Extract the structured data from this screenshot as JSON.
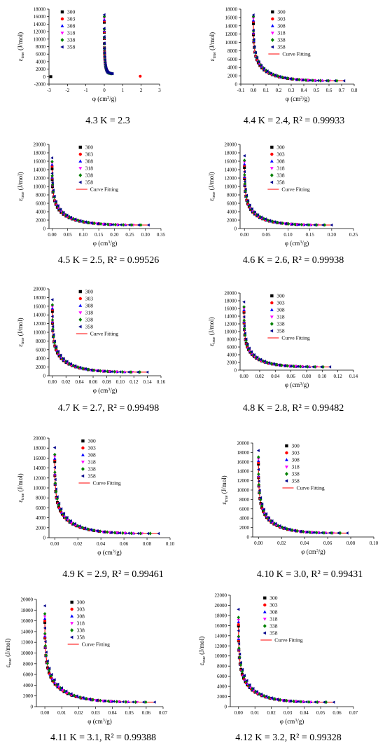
{
  "figure": {
    "legend_labels": [
      "300",
      "303",
      "308",
      "318",
      "338",
      "358"
    ],
    "fit_label": "Curve Fitting",
    "ylabel_symbol": "ε",
    "ylabel_sub": "true",
    "ylabel_unit": " (J/mol)",
    "xlabel_main": "φ (cm",
    "xlabel_sup": "3",
    "xlabel_tail": "/g)"
  },
  "series_styles": [
    {
      "name": "300",
      "color": "#000000",
      "marker": "square"
    },
    {
      "name": "303",
      "color": "#ff0000",
      "marker": "circle"
    },
    {
      "name": "308",
      "color": "#0000ff",
      "marker": "triangle-up"
    },
    {
      "name": "318",
      "color": "#ff00ff",
      "marker": "triangle-down"
    },
    {
      "name": "338",
      "color": "#008000",
      "marker": "diamond"
    },
    {
      "name": "358",
      "color": "#00008b",
      "marker": "triangle-left"
    }
  ],
  "fit_color": "#ff0000",
  "chart_data": [
    {
      "type": "scatter",
      "caption": "4.3 K = 2.3",
      "has_fit": false,
      "xlim": [
        -3,
        3
      ],
      "ylim": [
        -2000,
        18000
      ],
      "xticks": [
        -3,
        -2,
        -1,
        0,
        1,
        2,
        3
      ],
      "yticks": [
        -2000,
        0,
        2000,
        4000,
        6000,
        8000,
        10000,
        12000,
        14000,
        16000,
        18000
      ],
      "xmax_data": 0.45,
      "yfirst": [
        14500,
        14800,
        15200,
        15600,
        16000,
        16500
      ],
      "outliers": [
        {
          "series": 0,
          "x": -2.9,
          "y": 0
        },
        {
          "series": 1,
          "x": 1.95,
          "y": 100
        }
      ]
    },
    {
      "type": "scatter",
      "caption": "4.4 K = 2.4, R² = 0.99933",
      "has_fit": true,
      "xlim": [
        -0.1,
        0.8
      ],
      "ylim": [
        0,
        18000
      ],
      "xticks": [
        -0.1,
        0.0,
        0.1,
        0.2,
        0.3,
        0.4,
        0.5,
        0.6,
        0.7,
        0.8
      ],
      "yticks": [
        0,
        2000,
        4000,
        6000,
        8000,
        10000,
        12000,
        14000,
        16000,
        18000
      ],
      "xmax_data": 0.72,
      "yfirst": [
        14500,
        15000,
        15300,
        15800,
        16200,
        16600
      ]
    },
    {
      "type": "scatter",
      "caption": "4.5 K = 2.5, R² = 0.99526",
      "has_fit": true,
      "xlim": [
        -0.01,
        0.35
      ],
      "ylim": [
        0,
        20000
      ],
      "xticks": [
        0.0,
        0.05,
        0.1,
        0.15,
        0.2,
        0.25,
        0.3,
        0.35
      ],
      "yticks": [
        0,
        2000,
        4000,
        6000,
        8000,
        10000,
        12000,
        14000,
        16000,
        18000,
        20000
      ],
      "xmax_data": 0.31,
      "yfirst": [
        14200,
        14800,
        15200,
        15600,
        15900,
        16800
      ]
    },
    {
      "type": "scatter",
      "caption": "4.6 K = 2.6, R² = 0.99938",
      "has_fit": true,
      "xlim": [
        -0.01,
        0.25
      ],
      "ylim": [
        0,
        20000
      ],
      "xticks": [
        0.0,
        0.05,
        0.1,
        0.15,
        0.2,
        0.25
      ],
      "yticks": [
        0,
        2000,
        4000,
        6000,
        8000,
        10000,
        12000,
        14000,
        16000,
        18000,
        20000
      ],
      "xmax_data": 0.2,
      "yfirst": [
        14500,
        15000,
        15300,
        15800,
        16200,
        17300
      ]
    },
    {
      "type": "scatter",
      "caption": "4.7 K = 2.7, R² = 0.99498",
      "has_fit": true,
      "xlim": [
        -0.005,
        0.16
      ],
      "ylim": [
        0,
        20000
      ],
      "xticks": [
        0.0,
        0.02,
        0.04,
        0.06,
        0.08,
        0.1,
        0.12,
        0.14,
        0.16
      ],
      "yticks": [
        0,
        2000,
        4000,
        6000,
        8000,
        10000,
        12000,
        14000,
        16000,
        18000,
        20000
      ],
      "xmax_data": 0.14,
      "yfirst": [
        14800,
        15200,
        15500,
        15900,
        16300,
        17500
      ]
    },
    {
      "type": "scatter",
      "caption": "4.8 K = 2.8, R² = 0.99482",
      "has_fit": true,
      "xlim": [
        -0.005,
        0.14
      ],
      "ylim": [
        0,
        20000
      ],
      "xticks": [
        0.0,
        0.02,
        0.04,
        0.06,
        0.08,
        0.1,
        0.12,
        0.14
      ],
      "yticks": [
        0,
        2000,
        4000,
        6000,
        8000,
        10000,
        12000,
        14000,
        16000,
        18000,
        20000
      ],
      "xmax_data": 0.11,
      "yfirst": [
        15000,
        15300,
        15600,
        16000,
        16400,
        17700
      ]
    },
    {
      "type": "scatter",
      "caption": "4.9 K = 2.9, R² = 0.99461",
      "has_fit": true,
      "xlim": [
        -0.005,
        0.1
      ],
      "ylim": [
        0,
        20000
      ],
      "xticks": [
        0.0,
        0.02,
        0.04,
        0.06,
        0.08,
        0.1
      ],
      "yticks": [
        0,
        2000,
        4000,
        6000,
        8000,
        10000,
        12000,
        14000,
        16000,
        18000,
        20000
      ],
      "xmax_data": 0.09,
      "yfirst": [
        15300,
        15600,
        15900,
        16300,
        16700,
        18100
      ]
    },
    {
      "type": "scatter",
      "caption": "4.10 K = 3.0, R² = 0.99431",
      "has_fit": true,
      "xlim": [
        -0.005,
        0.1
      ],
      "ylim": [
        0,
        20000
      ],
      "xticks": [
        0.0,
        0.02,
        0.04,
        0.06,
        0.08,
        0.1
      ],
      "yticks": [
        0,
        2000,
        4000,
        6000,
        8000,
        10000,
        12000,
        14000,
        16000,
        18000,
        20000
      ],
      "xmax_data": 0.077,
      "yfirst": [
        15500,
        15800,
        16200,
        16600,
        17000,
        18400
      ]
    },
    {
      "type": "scatter",
      "caption": "4.11 K = 3.1, R² = 0.99388",
      "has_fit": true,
      "xlim": [
        -0.005,
        0.07
      ],
      "ylim": [
        0,
        20000
      ],
      "xticks": [
        0.0,
        0.01,
        0.02,
        0.03,
        0.04,
        0.05,
        0.06,
        0.07
      ],
      "yticks": [
        0,
        2000,
        4000,
        6000,
        8000,
        10000,
        12000,
        14000,
        16000,
        18000,
        20000
      ],
      "xmax_data": 0.065,
      "yfirst": [
        15700,
        16000,
        16400,
        16800,
        17300,
        18800
      ]
    },
    {
      "type": "scatter",
      "caption": "4.12 K = 3.2, R² = 0.99328",
      "has_fit": true,
      "xlim": [
        -0.005,
        0.07
      ],
      "ylim": [
        0,
        22000
      ],
      "xticks": [
        0.0,
        0.01,
        0.02,
        0.03,
        0.04,
        0.05,
        0.06,
        0.07
      ],
      "yticks": [
        0,
        2000,
        4000,
        6000,
        8000,
        10000,
        12000,
        14000,
        16000,
        18000,
        20000,
        22000
      ],
      "xmax_data": 0.058,
      "yfirst": [
        15900,
        16200,
        16700,
        17100,
        17600,
        19200
      ]
    }
  ]
}
